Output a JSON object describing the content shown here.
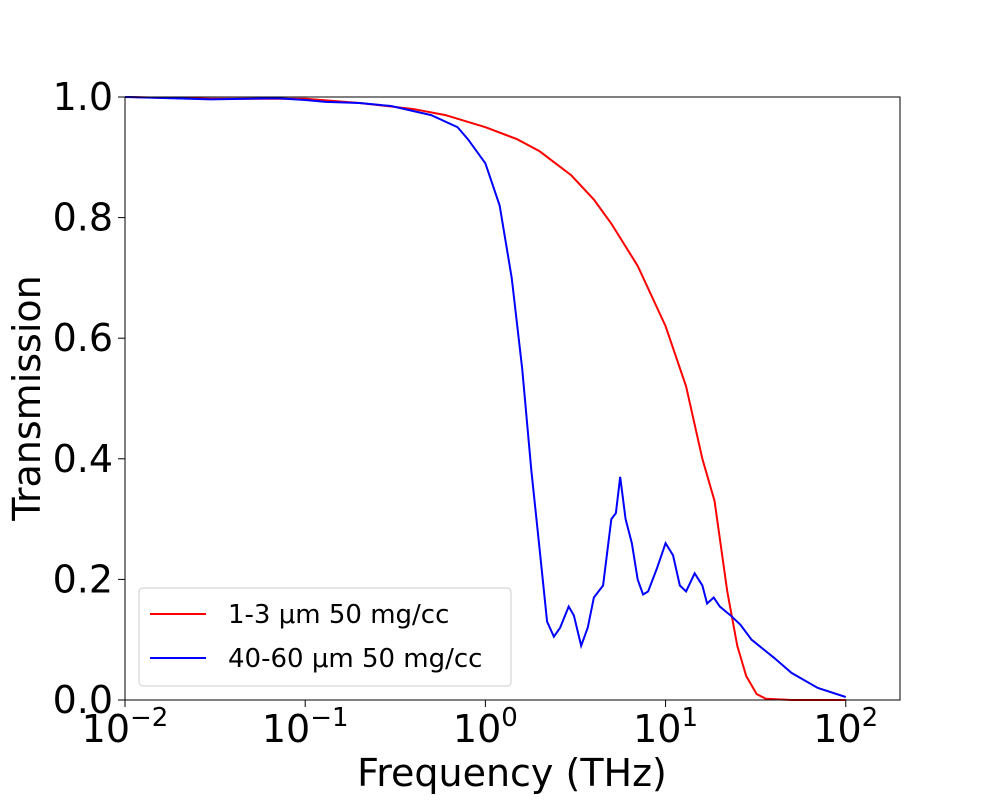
{
  "chart_data": {
    "type": "line",
    "xlabel": "Frequency (THz)",
    "ylabel": "Transmission",
    "xscale": "log",
    "xlim": [
      0.01,
      200
    ],
    "ylim": [
      0,
      1
    ],
    "xticks": [
      {
        "value": 0.01,
        "label": "10^−2"
      },
      {
        "value": 0.1,
        "label": "10^−1"
      },
      {
        "value": 1,
        "label": "10^0"
      },
      {
        "value": 10,
        "label": "10^1"
      },
      {
        "value": 100,
        "label": "10^2"
      }
    ],
    "yticks": [
      {
        "value": 0,
        "label": "0.0"
      },
      0.2,
      0.4,
      0.6,
      0.8,
      {
        "value": 1,
        "label": "1.0"
      }
    ],
    "legend": "lower left",
    "series": [
      {
        "name": "1-3 μm 50 mg/cc",
        "color": "#ff0000",
        "x": [
          0.01,
          0.03,
          0.1,
          0.2,
          0.4,
          0.6,
          1,
          1.5,
          2,
          3,
          4,
          5,
          7,
          10,
          13,
          16,
          18.7,
          22,
          25,
          28,
          32,
          36,
          50,
          100
        ],
        "values": [
          1.0,
          0.997,
          0.997,
          0.99,
          0.98,
          0.97,
          0.95,
          0.93,
          0.91,
          0.87,
          0.83,
          0.79,
          0.72,
          0.62,
          0.52,
          0.4,
          0.33,
          0.18,
          0.09,
          0.04,
          0.01,
          0.002,
          0,
          0
        ]
      },
      {
        "name": "40-60 μm 50 mg/cc",
        "color": "#0000ff",
        "x": [
          0.01,
          0.03,
          0.07,
          0.1,
          0.13,
          0.2,
          0.3,
          0.5,
          0.7,
          0.8,
          1.0,
          1.2,
          1.4,
          1.6,
          1.8,
          2.0,
          2.2,
          2.4,
          2.6,
          2.9,
          3.1,
          3.4,
          3.7,
          4.0,
          4.5,
          5.0,
          5.3,
          5.6,
          6.0,
          6.5,
          7,
          7.5,
          8,
          9,
          10,
          11,
          12,
          13,
          14.5,
          16,
          17,
          18.5,
          20,
          23,
          26,
          30,
          40,
          50,
          70,
          100
        ],
        "values": [
          1.0,
          0.996,
          0.998,
          0.995,
          0.992,
          0.99,
          0.985,
          0.97,
          0.95,
          0.93,
          0.89,
          0.82,
          0.7,
          0.55,
          0.38,
          0.25,
          0.13,
          0.105,
          0.12,
          0.155,
          0.14,
          0.09,
          0.12,
          0.17,
          0.19,
          0.3,
          0.31,
          0.37,
          0.3,
          0.26,
          0.2,
          0.175,
          0.18,
          0.22,
          0.26,
          0.24,
          0.19,
          0.18,
          0.21,
          0.19,
          0.16,
          0.17,
          0.155,
          0.14,
          0.125,
          0.1,
          0.07,
          0.045,
          0.02,
          0.005
        ]
      }
    ]
  }
}
